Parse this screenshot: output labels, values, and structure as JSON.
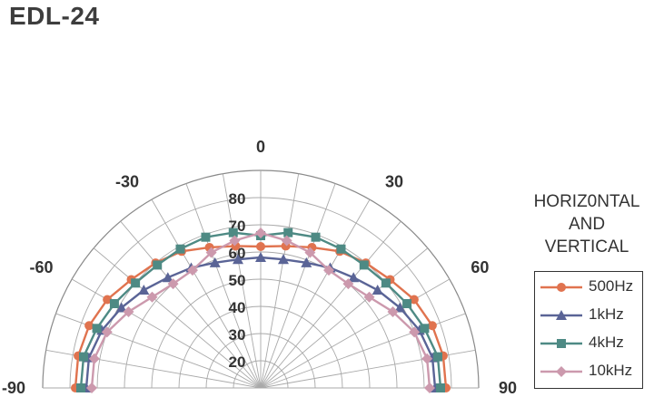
{
  "title": "EDL-24",
  "legend_title": [
    "HORIZ0NTAL",
    "AND",
    "VERTICAL"
  ],
  "chart_data": {
    "type": "polar-line",
    "title": "EDL-24",
    "angles": [
      -90,
      -80,
      -70,
      -60,
      -50,
      -40,
      -30,
      -20,
      -10,
      0,
      10,
      20,
      30,
      40,
      50,
      60,
      70,
      80,
      90
    ],
    "angle_tick_labels": [
      "-90",
      "-60",
      "-30",
      "0",
      "30",
      "60",
      "90"
    ],
    "radial_range": [
      10,
      90
    ],
    "radial_tick_values": [
      20,
      30,
      40,
      50,
      60,
      70,
      80
    ],
    "radial_tick_labels": [
      "20",
      "30",
      "40",
      "50",
      "60",
      "70",
      "80"
    ],
    "grid": true,
    "legend_position": "right",
    "series": [
      {
        "name": "500Hz",
        "color": "#e0734f",
        "marker": "circle",
        "values": [
          78,
          78,
          77,
          75,
          72,
          70,
          68,
          65,
          63,
          62,
          63,
          65,
          68,
          70,
          72,
          75,
          77,
          78,
          78
        ]
      },
      {
        "name": "1kHz",
        "color": "#5a6496",
        "marker": "triangle",
        "values": [
          74,
          74,
          72,
          69,
          66,
          63,
          61,
          59,
          58,
          58,
          58,
          59,
          61,
          63,
          66,
          69,
          72,
          74,
          74
        ]
      },
      {
        "name": "4kHz",
        "color": "#4e8a84",
        "marker": "square",
        "values": [
          76,
          76,
          74,
          72,
          70,
          69,
          69,
          69,
          68,
          66,
          68,
          69,
          69,
          69,
          70,
          72,
          74,
          76,
          76
        ]
      },
      {
        "name": "10kHz",
        "color": "#cc99ad",
        "marker": "diamond",
        "values": [
          72,
          72,
          70,
          66,
          62,
          60,
          60,
          63,
          65,
          67,
          65,
          63,
          60,
          60,
          62,
          66,
          70,
          72,
          72
        ]
      }
    ]
  }
}
